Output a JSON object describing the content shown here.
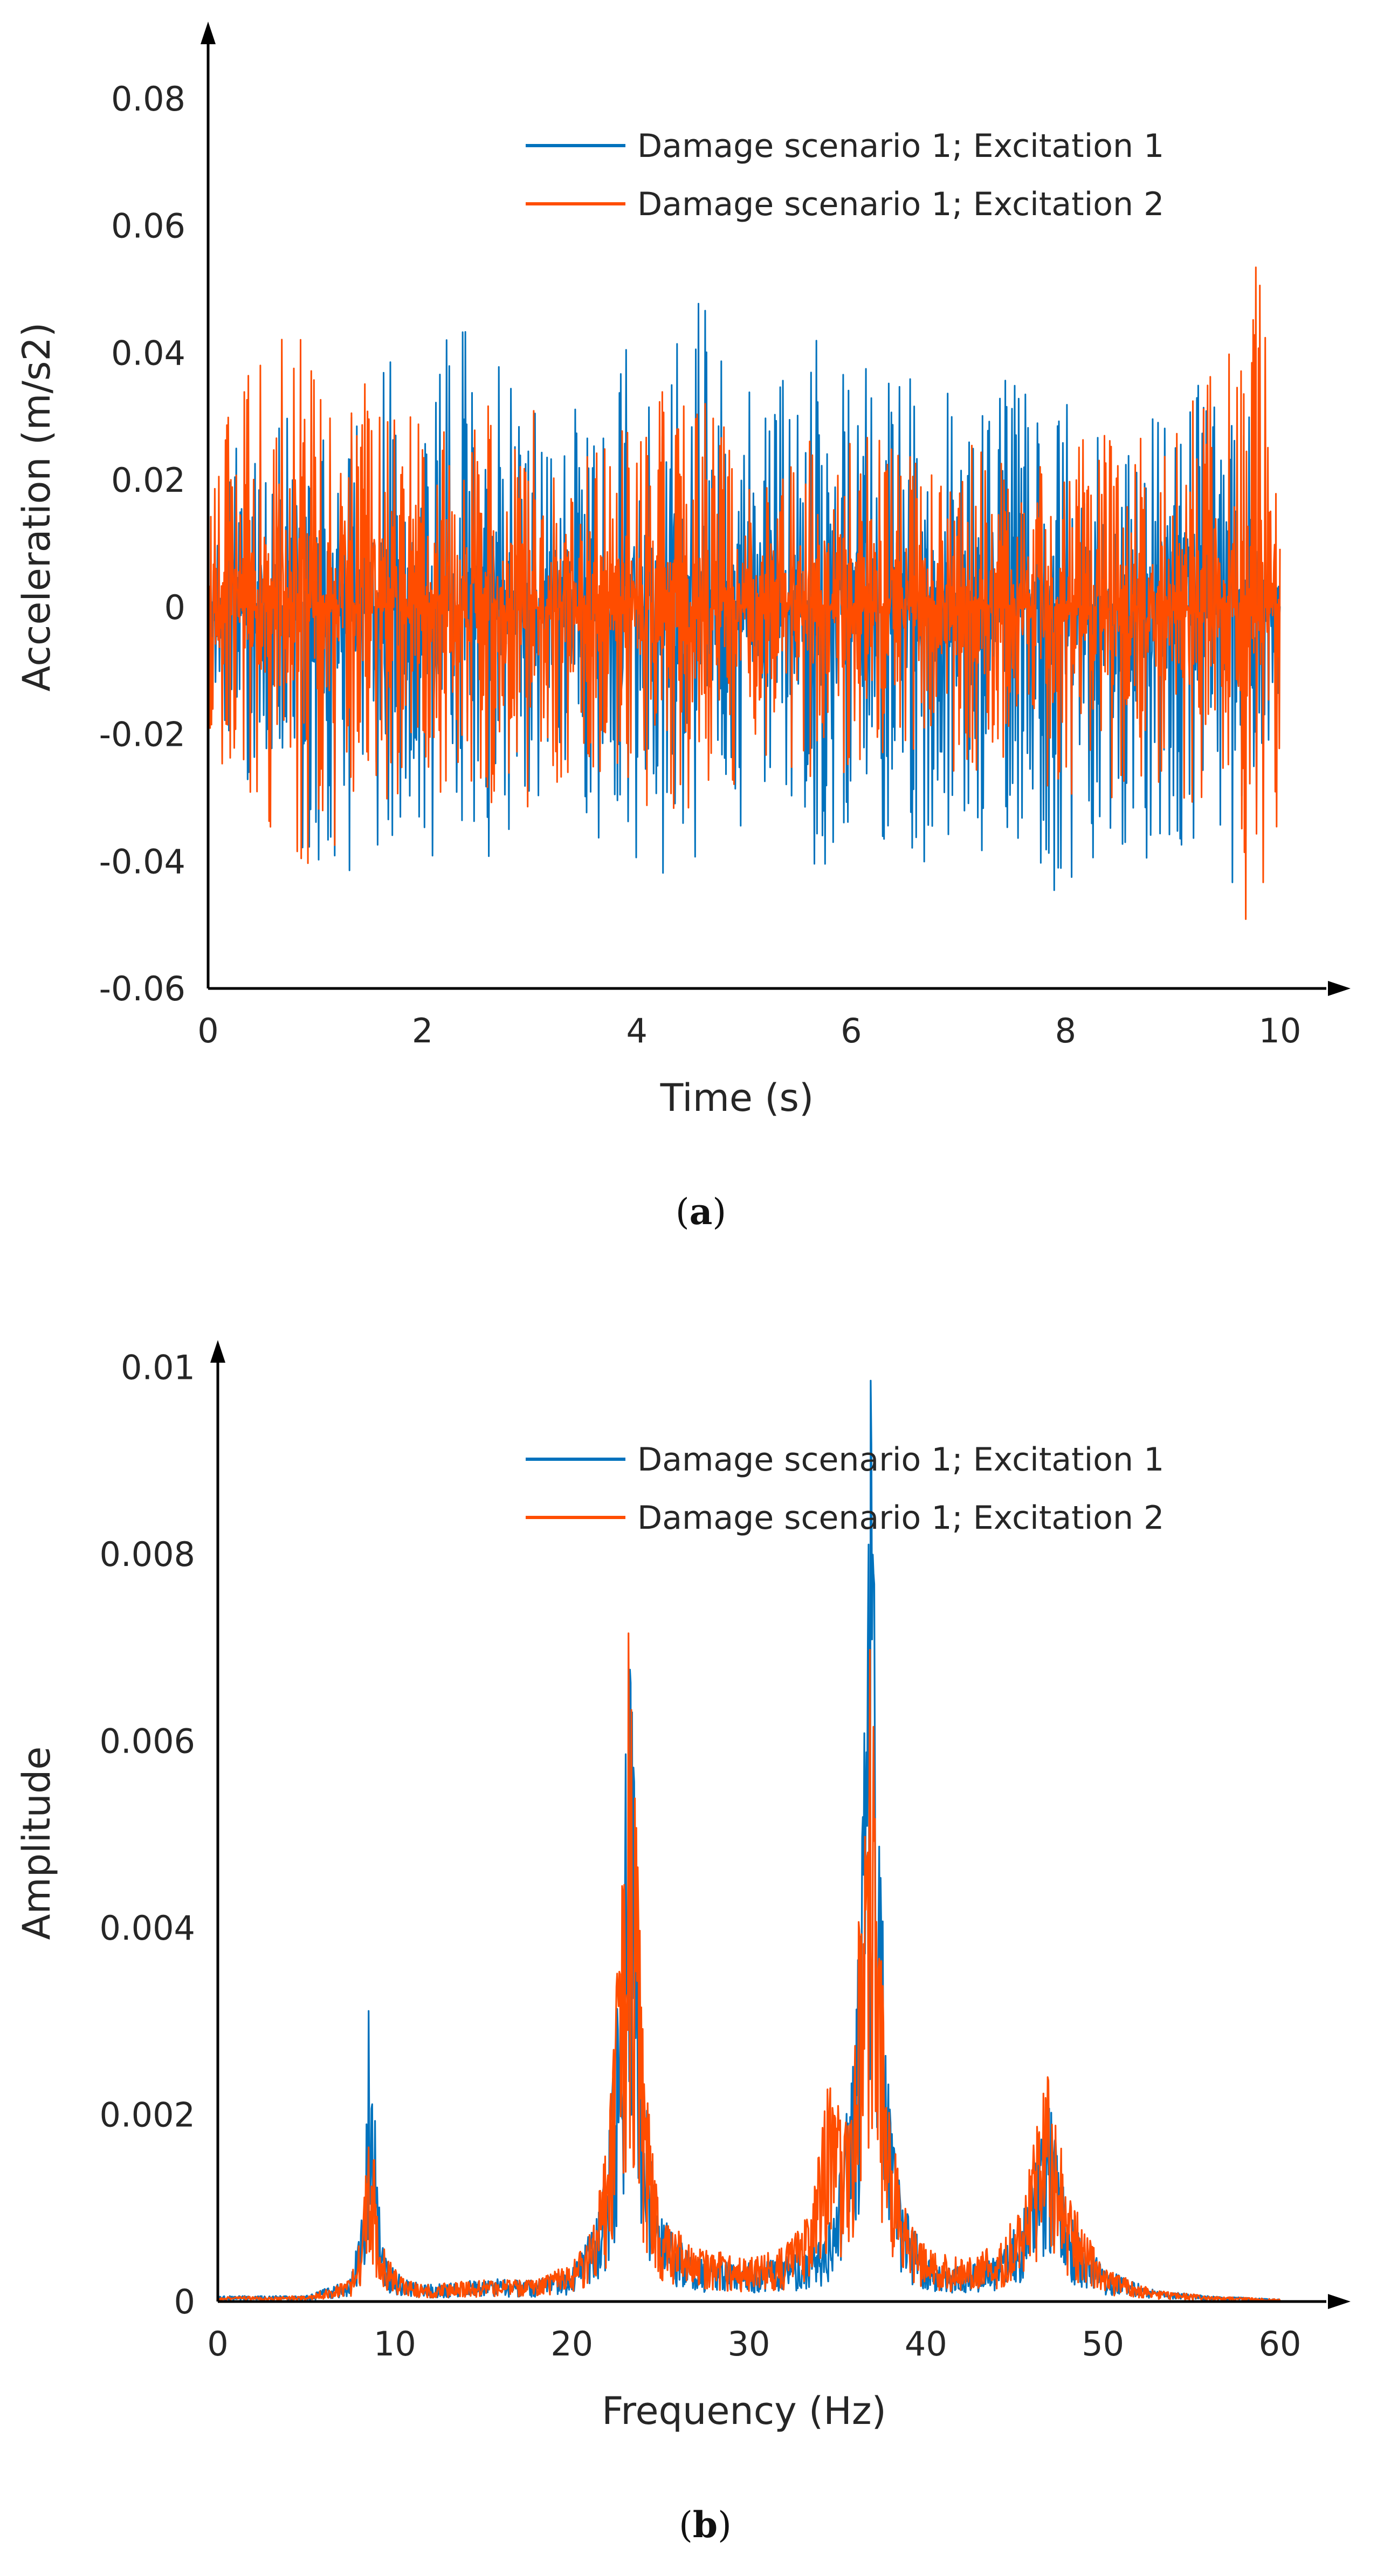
{
  "chart_data": [
    {
      "type": "line",
      "panel_caption": {
        "open": "(",
        "letter": "a",
        "close": ")"
      },
      "xlabel": "Time (s)",
      "ylabel": "Acceleration (m/s2)",
      "xlim": [
        0,
        10
      ],
      "ylim": [
        -0.06,
        0.08
      ],
      "xticks": [
        0,
        2,
        4,
        6,
        8,
        10
      ],
      "xtick_labels": [
        "0",
        "2",
        "4",
        "6",
        "8",
        "10"
      ],
      "yticks": [
        -0.06,
        -0.04,
        -0.02,
        0,
        0.02,
        0.04,
        0.06,
        0.08
      ],
      "ytick_labels": [
        "-0.06",
        "-0.04",
        "-0.02",
        "0",
        "0.02",
        "0.04",
        "0.06",
        "0.08"
      ],
      "grid": false,
      "legend_placement": "top-right",
      "series": [
        {
          "name": "Damage scenario 1; Excitation 1",
          "color": "#0072BD",
          "x": [
            0,
            0.25,
            0.5,
            0.75,
            1,
            1.25,
            1.5,
            1.75,
            2,
            2.25,
            2.5,
            2.75,
            3,
            3.25,
            3.5,
            3.75,
            4,
            4.25,
            4.5,
            4.75,
            5,
            5.25,
            5.5,
            5.75,
            6,
            6.25,
            6.5,
            6.75,
            7,
            7.25,
            7.5,
            7.75,
            8,
            8.25,
            8.5,
            8.75,
            9,
            9.25,
            9.5,
            9.75,
            10
          ],
          "envelope_max": [
            0.014,
            0.026,
            0.025,
            0.03,
            0.028,
            0.034,
            0.035,
            0.04,
            0.034,
            0.046,
            0.045,
            0.04,
            0.032,
            0.036,
            0.03,
            0.043,
            0.04,
            0.045,
            0.055,
            0.04,
            0.036,
            0.035,
            0.04,
            0.044,
            0.043,
            0.036,
            0.04,
            0.04,
            0.032,
            0.038,
            0.04,
            0.036,
            0.034,
            0.03,
            0.028,
            0.032,
            0.034,
            0.036,
            0.034,
            0.03,
            0.003
          ],
          "envelope_min": [
            -0.01,
            -0.028,
            -0.03,
            -0.035,
            -0.042,
            -0.045,
            -0.04,
            -0.038,
            -0.04,
            -0.038,
            -0.042,
            -0.038,
            -0.035,
            -0.032,
            -0.038,
            -0.04,
            -0.044,
            -0.047,
            -0.04,
            -0.038,
            -0.035,
            -0.03,
            -0.042,
            -0.045,
            -0.044,
            -0.04,
            -0.047,
            -0.038,
            -0.036,
            -0.04,
            -0.04,
            -0.044,
            -0.047,
            -0.04,
            -0.042,
            -0.04,
            -0.042,
            -0.04,
            -0.046,
            -0.048,
            -0.015
          ]
        },
        {
          "name": "Damage scenario 1; Excitation 2",
          "color": "#FF4D00",
          "x": [
            0,
            0.25,
            0.5,
            0.75,
            1,
            1.25,
            1.5,
            1.75,
            2,
            2.25,
            2.5,
            2.75,
            3,
            3.25,
            3.5,
            3.75,
            4,
            4.25,
            4.5,
            4.75,
            5,
            5.25,
            5.5,
            5.75,
            6,
            6.25,
            6.5,
            6.75,
            7,
            7.25,
            7.5,
            7.75,
            8,
            8.25,
            8.5,
            8.75,
            9,
            9.25,
            9.5,
            9.75,
            10
          ],
          "envelope_max": [
            0.024,
            0.033,
            0.04,
            0.044,
            0.04,
            0.04,
            0.038,
            0.03,
            0.03,
            0.028,
            0.03,
            0.034,
            0.036,
            0.026,
            0.024,
            0.028,
            0.03,
            0.036,
            0.035,
            0.03,
            0.03,
            0.026,
            0.026,
            0.028,
            0.026,
            0.03,
            0.026,
            0.024,
            0.026,
            0.028,
            0.026,
            0.024,
            0.03,
            0.03,
            0.03,
            0.026,
            0.028,
            0.036,
            0.046,
            0.063,
            0.058
          ],
          "envelope_min": [
            -0.028,
            -0.036,
            -0.04,
            -0.045,
            -0.042,
            -0.04,
            -0.034,
            -0.03,
            -0.028,
            -0.03,
            -0.03,
            -0.032,
            -0.032,
            -0.028,
            -0.026,
            -0.028,
            -0.03,
            -0.034,
            -0.032,
            -0.03,
            -0.028,
            -0.026,
            -0.026,
            -0.028,
            -0.026,
            -0.03,
            -0.026,
            -0.026,
            -0.026,
            -0.028,
            -0.026,
            -0.028,
            -0.03,
            -0.032,
            -0.03,
            -0.028,
            -0.03,
            -0.034,
            -0.04,
            -0.056,
            -0.05
          ]
        }
      ]
    },
    {
      "type": "line",
      "panel_caption": {
        "open": "(",
        "letter": "b",
        "close": ")"
      },
      "xlabel": "Frequency (Hz)",
      "ylabel": "Amplitude",
      "xlim": [
        0,
        60
      ],
      "ylim": [
        0,
        0.011
      ],
      "xticks": [
        0,
        10,
        20,
        30,
        40,
        50,
        60
      ],
      "xtick_labels": [
        "0",
        "10",
        "20",
        "30",
        "40",
        "50",
        "60"
      ],
      "yticks": [
        0,
        0.002,
        0.004,
        0.006,
        0.008,
        0.01
      ],
      "ytick_labels": [
        "0",
        "0.002",
        "0.004",
        "0.006",
        "0.008",
        "0.01"
      ],
      "grid": false,
      "legend_placement": "top-right",
      "series": [
        {
          "name": "Damage scenario 1; Excitation 1",
          "color": "#0072BD",
          "x": [
            0,
            5,
            7.5,
            8.2,
            8.6,
            9,
            9.5,
            10.5,
            12,
            15,
            18,
            20,
            21,
            22,
            22.8,
            23.2,
            23.5,
            24,
            24.5,
            25,
            27,
            30,
            32,
            34,
            35,
            36,
            36.5,
            36.9,
            37.3,
            38,
            39,
            40,
            42,
            44,
            45.5,
            46.5,
            47,
            48,
            50,
            53,
            56,
            60
          ],
          "y": [
            5e-05,
            5e-05,
            0.0002,
            0.0008,
            0.0034,
            0.0012,
            0.0004,
            0.0002,
            0.00015,
            0.0002,
            0.0002,
            0.0003,
            0.0006,
            0.0012,
            0.0034,
            0.0062,
            0.0048,
            0.0022,
            0.0014,
            0.0008,
            0.0004,
            0.00035,
            0.0004,
            0.0006,
            0.001,
            0.0024,
            0.005,
            0.0084,
            0.0046,
            0.0016,
            0.0008,
            0.0004,
            0.0003,
            0.0004,
            0.0008,
            0.0016,
            0.0019,
            0.0008,
            0.0003,
            0.0001,
            5e-05,
            2e-05
          ]
        },
        {
          "name": "Damage scenario 1; Excitation 2",
          "color": "#FF4D00",
          "x": [
            0,
            5,
            7.5,
            8.2,
            8.6,
            9,
            9.5,
            10.5,
            12,
            15,
            18,
            20,
            21,
            22,
            22.8,
            23.2,
            23.5,
            24,
            24.5,
            25,
            27,
            30,
            32,
            33.5,
            34.5,
            35.5,
            36.3,
            36.9,
            37.3,
            38,
            39,
            40,
            42,
            44,
            45.5,
            46.5,
            47,
            48,
            50,
            53,
            56,
            60
          ],
          "y": [
            4e-05,
            5e-05,
            0.0002,
            0.0007,
            0.0019,
            0.0009,
            0.0004,
            0.0002,
            0.00015,
            0.0002,
            0.0002,
            0.00035,
            0.0006,
            0.0014,
            0.0036,
            0.0065,
            0.0052,
            0.0026,
            0.0014,
            0.0008,
            0.0005,
            0.0004,
            0.0005,
            0.0008,
            0.0021,
            0.0016,
            0.0037,
            0.0061,
            0.0036,
            0.0016,
            0.0008,
            0.0005,
            0.0004,
            0.0005,
            0.0009,
            0.0018,
            0.0022,
            0.001,
            0.0003,
            0.0001,
            5e-05,
            2e-05
          ]
        }
      ]
    }
  ]
}
